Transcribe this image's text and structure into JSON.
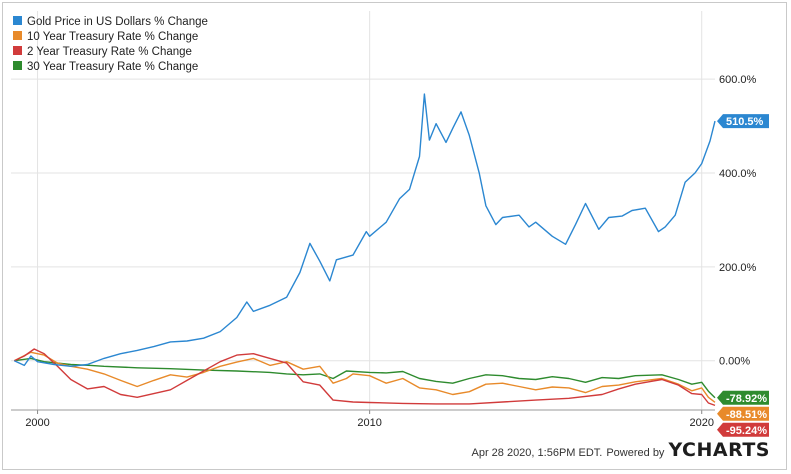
{
  "chart_data": {
    "type": "line",
    "title": "",
    "xlabel": "",
    "ylabel": "",
    "x_ticks": [
      "2000",
      "2010",
      "2020"
    ],
    "y_ticks": [
      "600.0%",
      "400.0%",
      "200.0%",
      "0.00%"
    ],
    "y_tick_values": [
      600,
      400,
      200,
      0
    ],
    "ylim": [
      -105,
      745
    ],
    "xlim": [
      1999.2,
      2020.4
    ],
    "grid": true,
    "legend_position": "top-left",
    "series": [
      {
        "name": "Gold Price in US Dollars % Change",
        "color": "#2b87d1",
        "end_label": "510.5%",
        "points": [
          [
            1999.3,
            0
          ],
          [
            1999.6,
            -10
          ],
          [
            1999.8,
            10
          ],
          [
            2000.0,
            -2
          ],
          [
            2000.5,
            -8
          ],
          [
            2001.0,
            -12
          ],
          [
            2001.5,
            -8
          ],
          [
            2002.0,
            5
          ],
          [
            2002.5,
            15
          ],
          [
            2003.0,
            22
          ],
          [
            2003.5,
            30
          ],
          [
            2004.0,
            40
          ],
          [
            2004.5,
            42
          ],
          [
            2005.0,
            48
          ],
          [
            2005.5,
            62
          ],
          [
            2006.0,
            92
          ],
          [
            2006.3,
            125
          ],
          [
            2006.5,
            105
          ],
          [
            2007.0,
            118
          ],
          [
            2007.5,
            135
          ],
          [
            2007.9,
            188
          ],
          [
            2008.2,
            250
          ],
          [
            2008.5,
            212
          ],
          [
            2008.8,
            170
          ],
          [
            2009.0,
            215
          ],
          [
            2009.5,
            225
          ],
          [
            2009.9,
            275
          ],
          [
            2010.0,
            265
          ],
          [
            2010.5,
            295
          ],
          [
            2010.9,
            345
          ],
          [
            2011.2,
            365
          ],
          [
            2011.5,
            435
          ],
          [
            2011.65,
            568
          ],
          [
            2011.8,
            470
          ],
          [
            2012.0,
            505
          ],
          [
            2012.3,
            465
          ],
          [
            2012.5,
            495
          ],
          [
            2012.75,
            530
          ],
          [
            2013.0,
            480
          ],
          [
            2013.3,
            400
          ],
          [
            2013.5,
            330
          ],
          [
            2013.8,
            290
          ],
          [
            2014.0,
            305
          ],
          [
            2014.5,
            310
          ],
          [
            2014.8,
            285
          ],
          [
            2015.0,
            295
          ],
          [
            2015.5,
            265
          ],
          [
            2015.9,
            248
          ],
          [
            2016.2,
            290
          ],
          [
            2016.5,
            335
          ],
          [
            2016.9,
            280
          ],
          [
            2017.2,
            305
          ],
          [
            2017.6,
            308
          ],
          [
            2017.9,
            320
          ],
          [
            2018.3,
            325
          ],
          [
            2018.7,
            275
          ],
          [
            2018.9,
            285
          ],
          [
            2019.2,
            310
          ],
          [
            2019.5,
            380
          ],
          [
            2019.8,
            400
          ],
          [
            2020.0,
            420
          ],
          [
            2020.25,
            468
          ],
          [
            2020.4,
            510.5
          ]
        ]
      },
      {
        "name": "10 Year Treasury Rate % Change",
        "color": "#e88a2a",
        "end_label": "-88.51%",
        "points": [
          [
            1999.3,
            0
          ],
          [
            1999.8,
            18
          ],
          [
            2000.2,
            12
          ],
          [
            2000.6,
            -5
          ],
          [
            2001.0,
            -12
          ],
          [
            2001.5,
            -18
          ],
          [
            2002.0,
            -28
          ],
          [
            2002.5,
            -42
          ],
          [
            2003.0,
            -55
          ],
          [
            2003.5,
            -42
          ],
          [
            2004.0,
            -30
          ],
          [
            2004.5,
            -35
          ],
          [
            2005.0,
            -25
          ],
          [
            2005.5,
            -12
          ],
          [
            2006.0,
            -3
          ],
          [
            2006.5,
            5
          ],
          [
            2007.0,
            -10
          ],
          [
            2007.5,
            -2
          ],
          [
            2008.0,
            -18
          ],
          [
            2008.5,
            -12
          ],
          [
            2008.9,
            -48
          ],
          [
            2009.3,
            -38
          ],
          [
            2009.5,
            -28
          ],
          [
            2010.0,
            -32
          ],
          [
            2010.5,
            -48
          ],
          [
            2011.0,
            -38
          ],
          [
            2011.5,
            -58
          ],
          [
            2012.0,
            -62
          ],
          [
            2012.5,
            -72
          ],
          [
            2013.0,
            -66
          ],
          [
            2013.5,
            -50
          ],
          [
            2014.0,
            -48
          ],
          [
            2014.5,
            -55
          ],
          [
            2015.0,
            -62
          ],
          [
            2015.5,
            -56
          ],
          [
            2016.0,
            -58
          ],
          [
            2016.5,
            -68
          ],
          [
            2017.0,
            -55
          ],
          [
            2017.5,
            -52
          ],
          [
            2018.0,
            -45
          ],
          [
            2018.8,
            -38
          ],
          [
            2019.3,
            -50
          ],
          [
            2019.7,
            -64
          ],
          [
            2020.0,
            -58
          ],
          [
            2020.2,
            -78
          ],
          [
            2020.4,
            -88.51
          ]
        ]
      },
      {
        "name": "2 Year Treasury Rate % Change",
        "color": "#d13b3b",
        "end_label": "-95.24%",
        "points": [
          [
            1999.3,
            0
          ],
          [
            1999.6,
            10
          ],
          [
            1999.9,
            25
          ],
          [
            2000.2,
            15
          ],
          [
            2000.6,
            -12
          ],
          [
            2001.0,
            -40
          ],
          [
            2001.5,
            -60
          ],
          [
            2002.0,
            -55
          ],
          [
            2002.5,
            -72
          ],
          [
            2003.0,
            -78
          ],
          [
            2003.5,
            -70
          ],
          [
            2004.0,
            -62
          ],
          [
            2004.5,
            -42
          ],
          [
            2005.0,
            -22
          ],
          [
            2005.5,
            -2
          ],
          [
            2006.0,
            12
          ],
          [
            2006.5,
            15
          ],
          [
            2007.0,
            5
          ],
          [
            2007.5,
            -5
          ],
          [
            2008.0,
            -45
          ],
          [
            2008.5,
            -52
          ],
          [
            2008.9,
            -84
          ],
          [
            2009.5,
            -88
          ],
          [
            2010.0,
            -89
          ],
          [
            2011.0,
            -91
          ],
          [
            2012.0,
            -92
          ],
          [
            2013.0,
            -92
          ],
          [
            2014.0,
            -88
          ],
          [
            2015.0,
            -84
          ],
          [
            2016.0,
            -80
          ],
          [
            2017.0,
            -72
          ],
          [
            2017.5,
            -60
          ],
          [
            2018.0,
            -50
          ],
          [
            2018.8,
            -40
          ],
          [
            2019.3,
            -52
          ],
          [
            2019.7,
            -70
          ],
          [
            2020.0,
            -72
          ],
          [
            2020.2,
            -90
          ],
          [
            2020.4,
            -95.24
          ]
        ]
      },
      {
        "name": "30 Year Treasury Rate % Change",
        "color": "#2e8b2e",
        "end_label": "-78.92%",
        "points": [
          [
            1999.3,
            0
          ],
          [
            1999.8,
            5
          ],
          [
            2000.2,
            -2
          ],
          [
            2001.0,
            -8
          ],
          [
            2001.6,
            -10
          ],
          [
            2002.0,
            -12
          ],
          [
            2003.0,
            -15
          ],
          [
            2004.0,
            -17
          ],
          [
            2005.0,
            -20
          ],
          [
            2006.0,
            -22
          ],
          [
            2007.0,
            -25
          ],
          [
            2007.5,
            -28
          ],
          [
            2008.0,
            -30
          ],
          [
            2008.5,
            -28
          ],
          [
            2008.9,
            -38
          ],
          [
            2009.3,
            -22
          ],
          [
            2010.0,
            -25
          ],
          [
            2010.5,
            -26
          ],
          [
            2011.0,
            -23
          ],
          [
            2011.5,
            -38
          ],
          [
            2012.0,
            -44
          ],
          [
            2012.5,
            -48
          ],
          [
            2013.0,
            -38
          ],
          [
            2013.5,
            -30
          ],
          [
            2014.0,
            -32
          ],
          [
            2014.5,
            -38
          ],
          [
            2015.0,
            -40
          ],
          [
            2015.5,
            -34
          ],
          [
            2016.0,
            -38
          ],
          [
            2016.5,
            -46
          ],
          [
            2017.0,
            -36
          ],
          [
            2017.5,
            -38
          ],
          [
            2018.0,
            -32
          ],
          [
            2018.8,
            -30
          ],
          [
            2019.3,
            -40
          ],
          [
            2019.7,
            -50
          ],
          [
            2020.0,
            -46
          ],
          [
            2020.2,
            -65
          ],
          [
            2020.4,
            -78.92
          ]
        ]
      }
    ]
  },
  "footer": {
    "timestamp": "Apr 28 2020, 1:56PM EDT.",
    "powered": "Powered by",
    "brand": "YCHARTS"
  }
}
